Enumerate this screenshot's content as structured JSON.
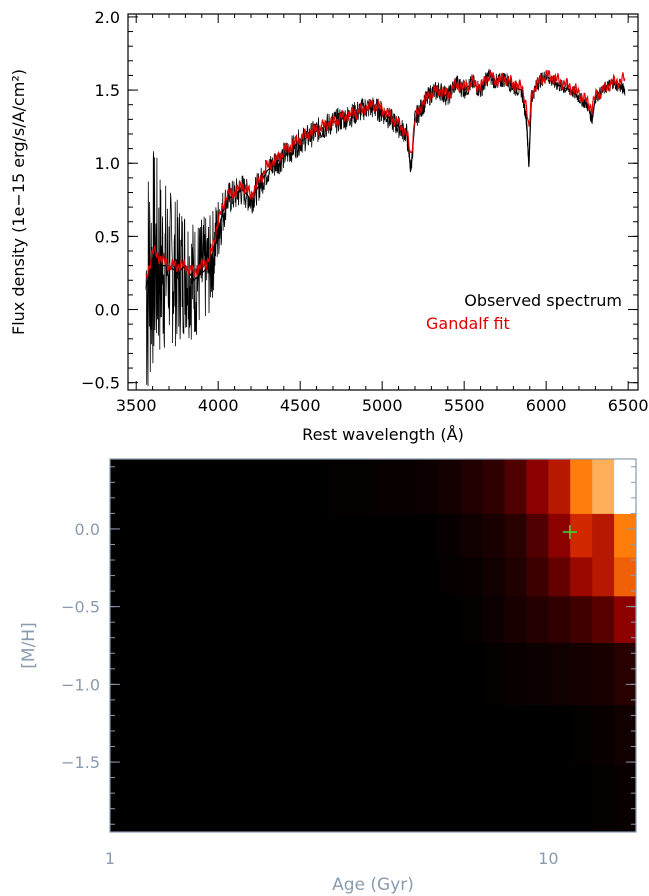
{
  "chart_data": [
    {
      "type": "line",
      "xlabel": "Rest wavelength (Å)",
      "ylabel": "Flux density (1e−15 erg/s/A/cm²)",
      "xlim": [
        3450,
        6560
      ],
      "ylim": [
        -0.55,
        2.02
      ],
      "x_ticks": [
        3500,
        4000,
        4500,
        5000,
        5500,
        6000,
        6500
      ],
      "x_tick_labels": [
        "3500",
        "4000",
        "4500",
        "5000",
        "5500",
        "6000",
        "6500"
      ],
      "y_ticks": [
        -0.5,
        0.0,
        0.5,
        1.0,
        1.5,
        2.0
      ],
      "y_tick_labels": [
        "−0.5",
        "0.0",
        "0.5",
        "1.0",
        "1.5",
        "2.0"
      ],
      "legend_position": "bottom-right",
      "series": [
        {
          "name": "Observed spectrum",
          "color": "#000000",
          "noise_level": [
            [
              3560,
              0.9
            ],
            [
              3700,
              0.55
            ],
            [
              3950,
              0.35
            ],
            [
              4050,
              0.12
            ],
            [
              4500,
              0.09
            ],
            [
              5000,
              0.08
            ],
            [
              6000,
              0.05
            ],
            [
              6480,
              0.04
            ]
          ],
          "x": [
            3560,
            3600,
            3650,
            3700,
            3750,
            3800,
            3850,
            3900,
            3950,
            4000,
            4050,
            4100,
            4150,
            4200,
            4250,
            4300,
            4350,
            4400,
            4450,
            4500,
            4550,
            4600,
            4650,
            4700,
            4750,
            4800,
            4850,
            4900,
            4950,
            5000,
            5050,
            5100,
            5150,
            5175,
            5200,
            5250,
            5300,
            5350,
            5400,
            5450,
            5500,
            5550,
            5600,
            5650,
            5700,
            5750,
            5800,
            5850,
            5880,
            5895,
            5910,
            5950,
            6000,
            6050,
            6100,
            6150,
            6200,
            6250,
            6280,
            6300,
            6350,
            6400,
            6450,
            6480
          ],
          "y": [
            0.15,
            0.35,
            0.3,
            0.3,
            0.25,
            0.3,
            0.2,
            0.25,
            0.3,
            0.55,
            0.75,
            0.78,
            0.82,
            0.75,
            0.85,
            0.95,
            1.0,
            1.05,
            1.1,
            1.15,
            1.18,
            1.22,
            1.25,
            1.28,
            1.3,
            1.32,
            1.35,
            1.38,
            1.38,
            1.35,
            1.3,
            1.25,
            1.2,
            0.95,
            1.3,
            1.4,
            1.48,
            1.5,
            1.45,
            1.55,
            1.5,
            1.55,
            1.5,
            1.6,
            1.55,
            1.58,
            1.52,
            1.5,
            1.3,
            0.98,
            1.45,
            1.55,
            1.6,
            1.55,
            1.52,
            1.5,
            1.45,
            1.4,
            1.3,
            1.45,
            1.5,
            1.55,
            1.52,
            1.5
          ]
        },
        {
          "name": "Gandalf fit",
          "color": "#e00000",
          "x": [
            3560,
            3600,
            3650,
            3700,
            3750,
            3800,
            3850,
            3900,
            3950,
            4000,
            4050,
            4100,
            4150,
            4200,
            4250,
            4300,
            4350,
            4400,
            4450,
            4500,
            4550,
            4600,
            4650,
            4700,
            4750,
            4800,
            4850,
            4900,
            4950,
            5000,
            5050,
            5100,
            5150,
            5175,
            5200,
            5250,
            5300,
            5350,
            5400,
            5450,
            5500,
            5550,
            5600,
            5650,
            5700,
            5750,
            5800,
            5850,
            5880,
            5895,
            5910,
            5950,
            6000,
            6050,
            6100,
            6150,
            6200,
            6250,
            6280,
            6300,
            6350,
            6400,
            6450,
            6480
          ],
          "y": [
            0.2,
            0.4,
            0.35,
            0.3,
            0.3,
            0.3,
            0.25,
            0.3,
            0.35,
            0.6,
            0.78,
            0.8,
            0.85,
            0.78,
            0.88,
            0.98,
            1.02,
            1.08,
            1.12,
            1.17,
            1.2,
            1.23,
            1.26,
            1.28,
            1.31,
            1.33,
            1.35,
            1.38,
            1.4,
            1.37,
            1.32,
            1.27,
            1.2,
            1.05,
            1.3,
            1.42,
            1.48,
            1.5,
            1.47,
            1.54,
            1.52,
            1.55,
            1.52,
            1.6,
            1.56,
            1.58,
            1.54,
            1.52,
            1.4,
            1.2,
            1.47,
            1.55,
            1.6,
            1.58,
            1.55,
            1.52,
            1.48,
            1.42,
            1.38,
            1.46,
            1.5,
            1.55,
            1.56,
            1.58
          ]
        }
      ]
    },
    {
      "type": "heatmap",
      "xlabel": "Age (Gyr)",
      "ylabel": "[M/H]",
      "x_scale": "log",
      "xlim": [
        1,
        15.85
      ],
      "ylim": [
        -1.95,
        0.45
      ],
      "x_ticks": [
        1,
        10
      ],
      "x_tick_labels": [
        "1",
        "10"
      ],
      "y_ticks": [
        -1.5,
        -1.0,
        -0.5,
        0.0
      ],
      "y_tick_labels": [
        "−1.5",
        "−1.0",
        "−0.5",
        "0.0"
      ],
      "grid": false,
      "log_age_bin_edges": [
        0.0,
        0.1,
        0.2,
        0.3,
        0.4,
        0.5,
        0.6,
        0.7,
        0.75,
        0.8,
        0.85,
        0.9,
        0.95,
        1.0,
        1.05,
        1.1,
        1.15,
        1.2
      ],
      "metallicity_bin_edges": [
        -1.95,
        -1.52,
        -1.13,
        -0.73,
        -0.43,
        -0.18,
        0.1,
        0.45
      ],
      "weights": [
        [
          0,
          0,
          0,
          0,
          0,
          0,
          0,
          0,
          0,
          0,
          0,
          0,
          0,
          0,
          0,
          0.01,
          0.02
        ],
        [
          0,
          0,
          0,
          0,
          0,
          0,
          0,
          0,
          0,
          0,
          0,
          0,
          0,
          0,
          0.01,
          0.02,
          0.04
        ],
        [
          0,
          0,
          0,
          0,
          0,
          0,
          0,
          0,
          0,
          0,
          0.01,
          0.02,
          0.03,
          0.04,
          0.05,
          0.06,
          0.1
        ],
        [
          0,
          0,
          0,
          0,
          0,
          0,
          0,
          0,
          0,
          0.01,
          0.03,
          0.06,
          0.09,
          0.12,
          0.16,
          0.22,
          0.35
        ],
        [
          0,
          0,
          0,
          0,
          0,
          0,
          0,
          0,
          0.01,
          0.02,
          0.04,
          0.08,
          0.15,
          0.25,
          0.4,
          0.5,
          0.7
        ],
        [
          0,
          0,
          0,
          0,
          0,
          0,
          0,
          0,
          0.02,
          0.04,
          0.06,
          0.1,
          0.2,
          0.35,
          0.6,
          0.5,
          0.75
        ],
        [
          0,
          0,
          0,
          0,
          0,
          0.01,
          0.02,
          0.03,
          0.05,
          0.08,
          0.12,
          0.2,
          0.35,
          0.5,
          0.75,
          0.85,
          1.0
        ]
      ],
      "marker": {
        "age_gyr": 11.2,
        "mh": -0.02,
        "color": "#33dd33",
        "symbol": "+"
      }
    }
  ]
}
